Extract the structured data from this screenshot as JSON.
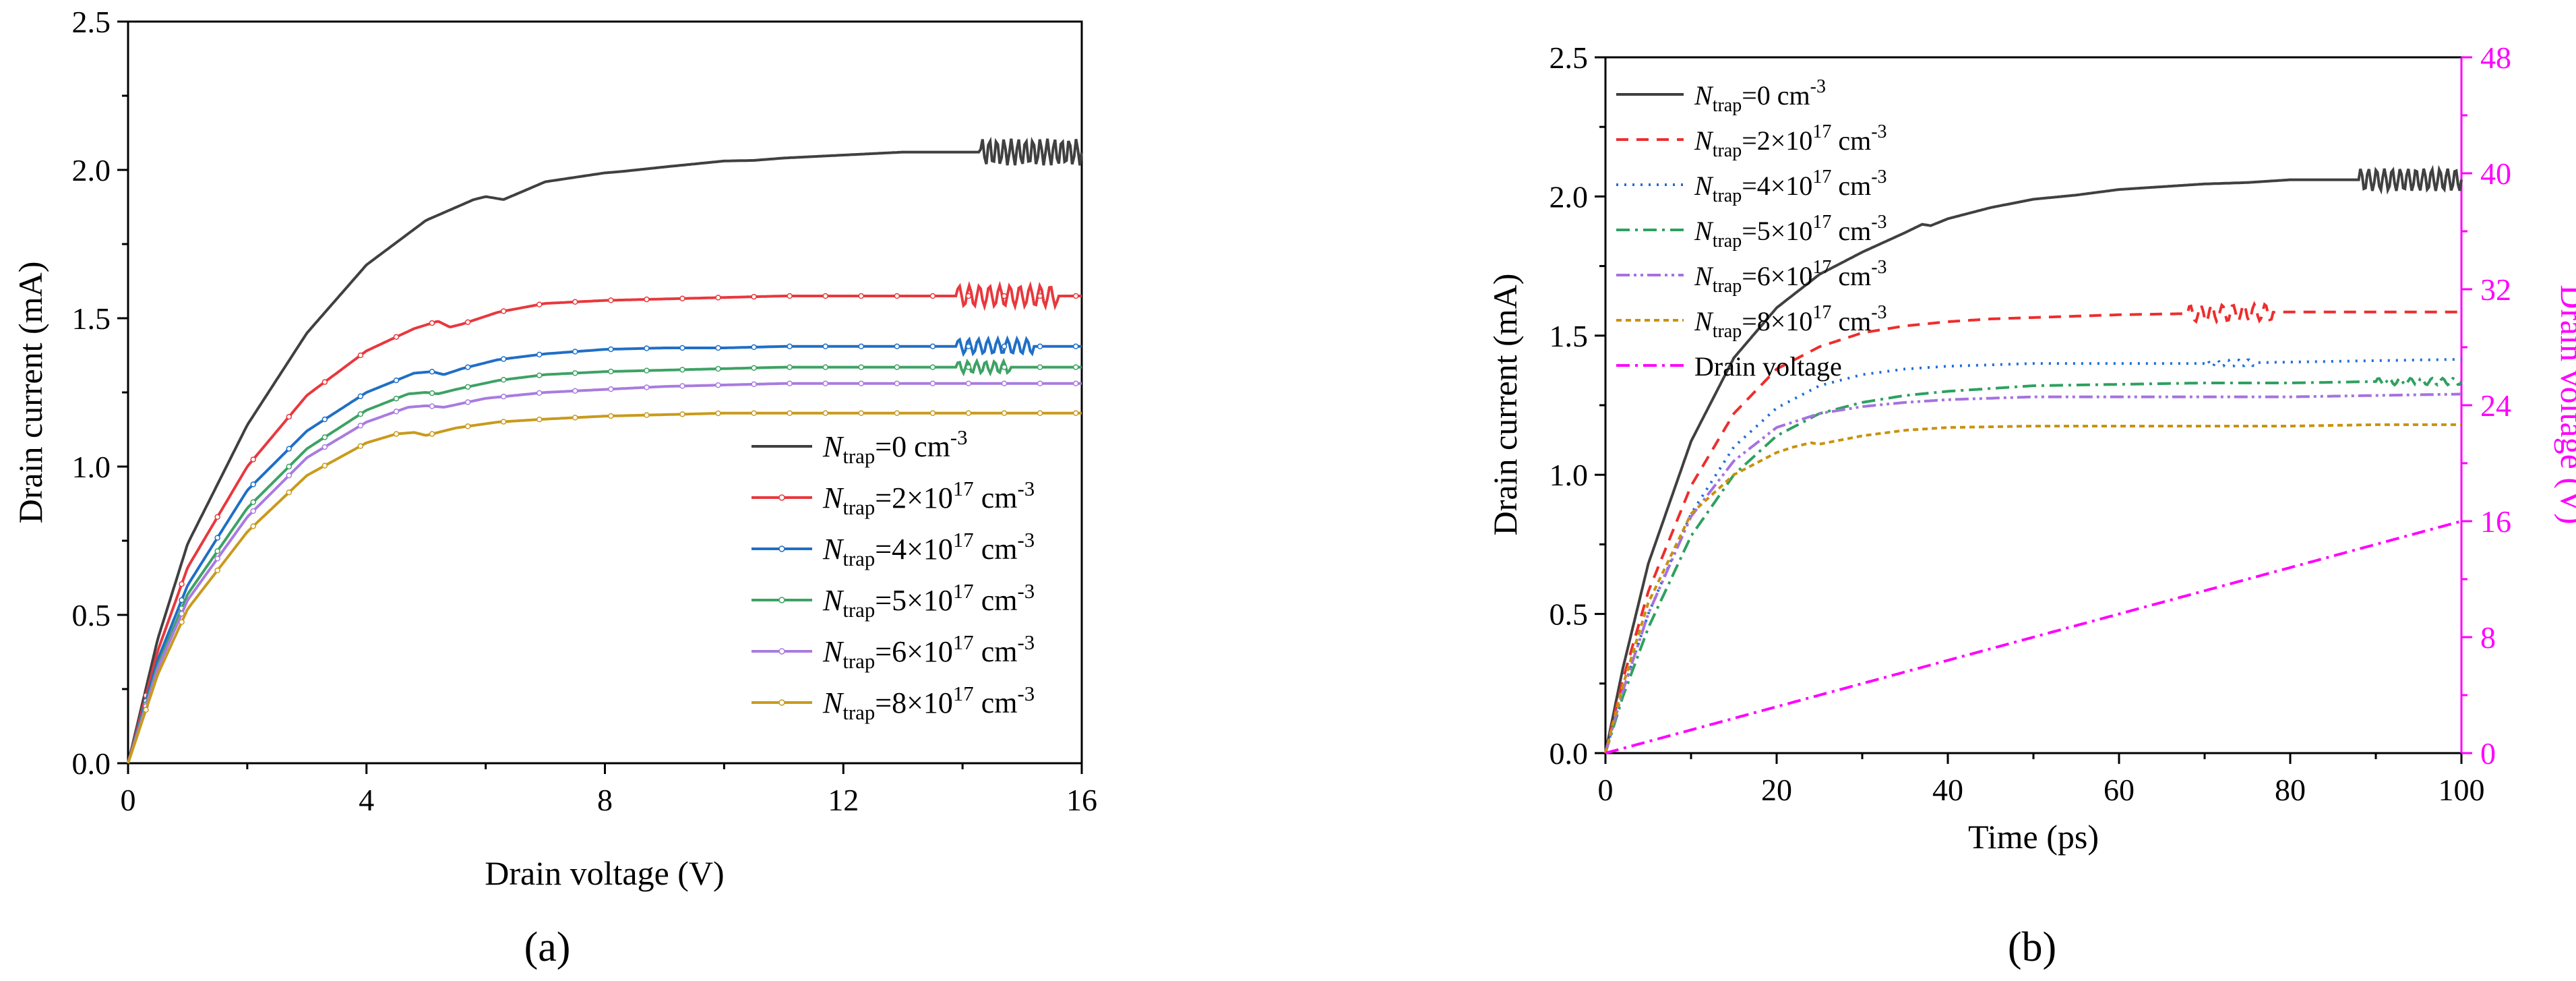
{
  "colors": {
    "axis": "#000000",
    "right_axis": "#ff00ff",
    "series_a": [
      "#404040",
      "#e8383d",
      "#1f6fc6",
      "#3da264",
      "#a97be0",
      "#c99a1c"
    ],
    "series_b": [
      "#404040",
      "#ee2d2d",
      "#1f6fd6",
      "#2ea060",
      "#a472e0",
      "#c9920c",
      "#ff00ff"
    ]
  },
  "chart_data": [
    {
      "id": "a",
      "type": "line",
      "panel_label": "(a)",
      "xlabel": "Drain voltage (V)",
      "ylabel": "Drain current (mA)",
      "xlim": [
        0,
        16
      ],
      "ylim": [
        0,
        2.5
      ],
      "xticks": [
        "0",
        "4",
        "8",
        "12",
        "16"
      ],
      "xtick_values": [
        0,
        4,
        8,
        12,
        16
      ],
      "yticks": [
        "0.0",
        "0.5",
        "1.0",
        "1.5",
        "2.0",
        "2.5"
      ],
      "ytick_values": [
        0,
        0.5,
        1.0,
        1.5,
        2.0,
        2.5
      ],
      "legend_position": "bottom-right",
      "series": [
        {
          "name": "N_trap=0 cm-3",
          "legend": {
            "sym": "N",
            "sub": "trap",
            "pre": "=0 cm",
            "sup": "-3",
            "post": ""
          },
          "marker": false,
          "x": [
            0,
            0.5,
            1,
            2,
            3,
            4,
            5,
            5.8,
            6.0,
            6.3,
            7,
            8,
            8.3,
            9,
            10,
            10.5,
            11,
            12,
            12.5,
            13,
            14,
            14.3,
            15,
            16
          ],
          "y": [
            0,
            0.42,
            0.74,
            1.14,
            1.45,
            1.68,
            1.83,
            1.9,
            1.91,
            1.9,
            1.96,
            1.99,
            1.995,
            2.01,
            2.03,
            2.032,
            2.04,
            2.05,
            2.055,
            2.06,
            2.06,
            2.06,
            2.06,
            2.06
          ],
          "ripple": {
            "x0": 14.3,
            "x1": 16,
            "amp": 0.045,
            "cycles": 14
          }
        },
        {
          "name": "N_trap=2×10^17 cm-3",
          "legend": {
            "sym": "N",
            "sub": "trap",
            "pre": "=2×10",
            "sup": "17",
            "post": " cm",
            "sup2": "-3"
          },
          "marker": true,
          "x": [
            0,
            0.5,
            1,
            2,
            3,
            4,
            4.8,
            5.2,
            5.4,
            5.6,
            6.2,
            7,
            8,
            9,
            10,
            11,
            12,
            13,
            14,
            16
          ],
          "y": [
            0,
            0.38,
            0.66,
            1.0,
            1.24,
            1.39,
            1.465,
            1.49,
            1.47,
            1.48,
            1.52,
            1.55,
            1.56,
            1.565,
            1.57,
            1.575,
            1.575,
            1.575,
            1.575,
            1.575
          ],
          "ripple": {
            "x0": 13.9,
            "x1": 15.6,
            "amp": 0.035,
            "cycles": 10
          }
        },
        {
          "name": "N_trap=4×10^17 cm-3",
          "legend": {
            "sym": "N",
            "sub": "trap",
            "pre": "=4×10",
            "sup": "17",
            "post": " cm",
            "sup2": "-3"
          },
          "marker": true,
          "x": [
            0,
            0.5,
            1,
            2,
            3,
            4,
            4.8,
            5.1,
            5.3,
            5.6,
            6.2,
            7,
            8,
            9,
            10,
            11,
            12,
            13,
            14,
            16
          ],
          "y": [
            0,
            0.35,
            0.6,
            0.92,
            1.12,
            1.25,
            1.315,
            1.32,
            1.31,
            1.33,
            1.36,
            1.38,
            1.395,
            1.4,
            1.4,
            1.405,
            1.405,
            1.405,
            1.405,
            1.405
          ],
          "ripple": {
            "x0": 13.9,
            "x1": 15.2,
            "amp": 0.025,
            "cycles": 8
          }
        },
        {
          "name": "N_trap=5×10^17 cm-3",
          "legend": {
            "sym": "N",
            "sub": "trap",
            "pre": "=5×10",
            "sup": "17",
            "post": " cm",
            "sup2": "-3"
          },
          "marker": true,
          "x": [
            0,
            0.5,
            1,
            2,
            3,
            4,
            4.7,
            5.0,
            5.2,
            5.5,
            6.2,
            7,
            8,
            9,
            10,
            11,
            12,
            13,
            14,
            16
          ],
          "y": [
            0,
            0.33,
            0.57,
            0.86,
            1.06,
            1.19,
            1.245,
            1.25,
            1.245,
            1.26,
            1.29,
            1.31,
            1.32,
            1.325,
            1.33,
            1.335,
            1.335,
            1.335,
            1.335,
            1.335
          ],
          "ripple": {
            "x0": 13.9,
            "x1": 14.8,
            "amp": 0.02,
            "cycles": 6
          }
        },
        {
          "name": "N_trap=6×10^17 cm-3",
          "legend": {
            "sym": "N",
            "sub": "trap",
            "pre": "=6×10",
            "sup": "17",
            "post": " cm",
            "sup2": "-3"
          },
          "marker": true,
          "x": [
            0,
            0.5,
            1,
            2,
            3,
            4,
            4.7,
            5.0,
            5.3,
            6,
            7,
            8,
            9,
            10,
            11,
            12,
            13,
            14,
            16
          ],
          "y": [
            0,
            0.32,
            0.55,
            0.83,
            1.03,
            1.15,
            1.2,
            1.205,
            1.2,
            1.23,
            1.25,
            1.26,
            1.27,
            1.275,
            1.28,
            1.28,
            1.28,
            1.28,
            1.28
          ],
          "ripple": null
        },
        {
          "name": "N_trap=8×10^17 cm-3",
          "legend": {
            "sym": "N",
            "sub": "trap",
            "pre": "=8×10",
            "sup": "17",
            "post": " cm",
            "sup2": "-3"
          },
          "marker": true,
          "x": [
            0,
            0.5,
            1,
            2,
            3,
            4,
            4.5,
            4.8,
            5.0,
            5.5,
            6.2,
            7,
            8,
            9,
            10,
            11,
            12,
            13,
            14,
            16
          ],
          "y": [
            0,
            0.3,
            0.52,
            0.78,
            0.97,
            1.08,
            1.11,
            1.115,
            1.105,
            1.13,
            1.15,
            1.16,
            1.17,
            1.175,
            1.18,
            1.18,
            1.18,
            1.18,
            1.18,
            1.18
          ],
          "ripple": null
        }
      ]
    },
    {
      "id": "b",
      "type": "line",
      "panel_label": "(b)",
      "xlabel": "Time (ps)",
      "ylabel": "Drain current (mA)",
      "y2label": "Drain voltage (V)",
      "xlim": [
        0,
        100
      ],
      "ylim": [
        0,
        2.5
      ],
      "y2lim": [
        0,
        48
      ],
      "xticks": [
        "0",
        "20",
        "40",
        "60",
        "80",
        "100"
      ],
      "xtick_values": [
        0,
        20,
        40,
        60,
        80,
        100
      ],
      "yticks": [
        "0.0",
        "0.5",
        "1.0",
        "1.5",
        "2.0",
        "2.5"
      ],
      "ytick_values": [
        0,
        0.5,
        1.0,
        1.5,
        2.0,
        2.5
      ],
      "y2ticks": [
        "0",
        "8",
        "16",
        "24",
        "32",
        "40",
        "48"
      ],
      "y2tick_values": [
        0,
        8,
        16,
        24,
        32,
        40,
        48
      ],
      "legend_position": "top-left",
      "series": [
        {
          "name": "N_trap=0 cm-3",
          "legend": {
            "sym": "N",
            "sub": "trap",
            "pre": "=0 cm",
            "sup": "-3",
            "post": ""
          },
          "dash": "",
          "x": [
            0,
            2,
            5,
            10,
            15,
            20,
            25,
            30,
            35,
            37,
            38,
            40,
            45,
            50,
            55,
            60,
            65,
            70,
            75,
            80,
            85,
            88,
            100
          ],
          "y": [
            0,
            0.3,
            0.68,
            1.12,
            1.42,
            1.6,
            1.72,
            1.8,
            1.87,
            1.9,
            1.895,
            1.92,
            1.96,
            1.99,
            2.005,
            2.025,
            2.035,
            2.045,
            2.05,
            2.06,
            2.06,
            2.06,
            2.06
          ],
          "ripple": {
            "x0": 88,
            "x1": 100,
            "amp": 0.04,
            "cycles": 13
          }
        },
        {
          "name": "N_trap=2×10^17 cm-3",
          "legend": {
            "sym": "N",
            "sub": "trap",
            "pre": "=2×10",
            "sup": "17",
            "post": " cm",
            "sup2": "-3"
          },
          "dash": "18,12",
          "x": [
            0,
            2,
            5,
            10,
            15,
            20,
            25,
            30,
            35,
            40,
            45,
            50,
            60,
            70,
            80,
            90,
            100
          ],
          "y": [
            0,
            0.26,
            0.58,
            0.96,
            1.22,
            1.38,
            1.46,
            1.51,
            1.535,
            1.55,
            1.56,
            1.565,
            1.575,
            1.58,
            1.585,
            1.585,
            1.585
          ],
          "ripple": {
            "x0": 68,
            "x1": 78,
            "amp": 0.03,
            "cycles": 8
          }
        },
        {
          "name": "N_trap=4×10^17 cm-3",
          "legend": {
            "sym": "N",
            "sub": "trap",
            "pre": "=4×10",
            "sup": "17",
            "post": " cm",
            "sup2": "-3"
          },
          "dash": "3,9",
          "x": [
            0,
            2,
            5,
            10,
            15,
            20,
            25,
            30,
            35,
            40,
            45,
            50,
            60,
            70,
            80,
            90,
            100
          ],
          "y": [
            0,
            0.22,
            0.5,
            0.86,
            1.1,
            1.24,
            1.32,
            1.36,
            1.38,
            1.39,
            1.395,
            1.4,
            1.4,
            1.4,
            1.405,
            1.41,
            1.415
          ],
          "ripple": {
            "x0": 70,
            "x1": 76,
            "amp": 0.012,
            "cycles": 5
          }
        },
        {
          "name": "N_trap=5×10^17 cm-3",
          "legend": {
            "sym": "N",
            "sub": "trap",
            "pre": "=5×10",
            "sup": "17",
            "post": " cm",
            "sup2": "-3"
          },
          "dash": "20,8,4,8",
          "x": [
            0,
            2,
            5,
            10,
            15,
            20,
            25,
            30,
            35,
            40,
            45,
            50,
            60,
            70,
            80,
            90,
            100
          ],
          "y": [
            0,
            0.2,
            0.45,
            0.78,
            1.0,
            1.14,
            1.22,
            1.26,
            1.285,
            1.3,
            1.31,
            1.32,
            1.325,
            1.33,
            1.33,
            1.335,
            1.335
          ],
          "ripple": {
            "x0": 90,
            "x1": 100,
            "amp": 0.012,
            "cycles": 8
          }
        },
        {
          "name": "N_trap=6×10^17 cm-3",
          "legend": {
            "sym": "N",
            "sub": "trap",
            "pre": "=6×10",
            "sup": "17",
            "post": " cm",
            "sup2": "-3"
          },
          "dash": "20,6,4,6,4,6",
          "x": [
            0,
            2,
            5,
            10,
            15,
            20,
            25,
            30,
            35,
            40,
            45,
            50,
            60,
            70,
            80,
            90,
            100
          ],
          "y": [
            0,
            0.22,
            0.5,
            0.85,
            1.05,
            1.17,
            1.22,
            1.245,
            1.26,
            1.27,
            1.275,
            1.28,
            1.28,
            1.28,
            1.28,
            1.285,
            1.29
          ],
          "ripple": null
        },
        {
          "name": "N_trap=8×10^17 cm-3",
          "legend": {
            "sym": "N",
            "sub": "trap",
            "pre": "=8×10",
            "sup": "17",
            "post": " cm",
            "sup2": "-3"
          },
          "dash": "8,6",
          "x": [
            0,
            2,
            5,
            10,
            15,
            20,
            22,
            24,
            25,
            30,
            35,
            40,
            50,
            60,
            70,
            80,
            90,
            100
          ],
          "y": [
            0,
            0.24,
            0.54,
            0.86,
            1.0,
            1.08,
            1.1,
            1.115,
            1.11,
            1.14,
            1.16,
            1.17,
            1.175,
            1.175,
            1.175,
            1.175,
            1.18,
            1.18
          ],
          "ripple": null
        },
        {
          "name": "Drain voltage",
          "legend": {
            "sym": "",
            "sub": "",
            "pre": "Drain voltage",
            "sup": "",
            "post": ""
          },
          "dash": "20,8,4,8",
          "axis": "right",
          "x": [
            0,
            100
          ],
          "y": [
            0,
            16
          ],
          "ripple": null
        }
      ]
    }
  ]
}
